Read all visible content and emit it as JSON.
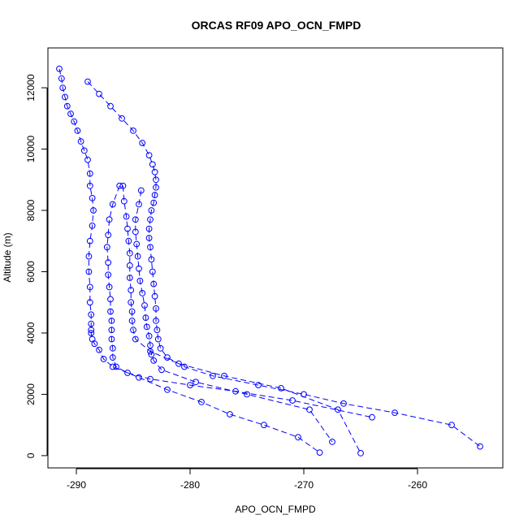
{
  "chart_data": {
    "type": "scatter",
    "title": "ORCAS RF09 APO_OCN_FMPD",
    "xlabel": "APO_OCN_FMPD",
    "ylabel": "Altitude (m)",
    "xlim": [
      -292.5,
      -252.5
    ],
    "ylim": [
      -400,
      13300
    ],
    "xticks": [
      -290,
      -280,
      -270,
      -260
    ],
    "yticks": [
      0,
      2000,
      4000,
      6000,
      8000,
      10000,
      12000
    ],
    "color": "#0000ff",
    "marker": "open-circle",
    "line_style": "dashed",
    "series": [
      {
        "x": [
          -291.5,
          -291.3,
          -291.2,
          -291.0,
          -290.8,
          -290.5,
          -290.2,
          -289.9,
          -289.6,
          -289.3,
          -289.0,
          -288.8,
          -288.8,
          -288.6,
          -288.5,
          -288.6,
          -288.8,
          -288.9,
          -288.9,
          -288.8,
          -288.8,
          -288.7,
          -288.7,
          -288.7,
          -288.7,
          -288.6,
          -288.4,
          -288.0,
          -287.6,
          -286.8,
          -284.5,
          -282.0,
          -279.0,
          -276.5,
          -273.5,
          -270.5,
          -268.6
        ],
        "y": [
          12620,
          12300,
          12000,
          11700,
          11400,
          11150,
          10900,
          10600,
          10250,
          9950,
          9650,
          9200,
          8800,
          8400,
          8000,
          7500,
          7000,
          6500,
          6000,
          5500,
          5000,
          4600,
          4300,
          4100,
          4000,
          3800,
          3650,
          3450,
          3150,
          2900,
          2550,
          2150,
          1750,
          1350,
          1000,
          600,
          100
        ]
      },
      {
        "x": [
          -289.0,
          -288.0,
          -287.0,
          -286.0,
          -285.0,
          -284.2,
          -283.6,
          -283.3,
          -283.1,
          -283.0,
          -283.0,
          -283.1,
          -283.2,
          -283.4,
          -283.5,
          -283.6,
          -283.6,
          -283.5,
          -283.4,
          -283.3,
          -283.2,
          -283.1,
          -283.0,
          -283.0,
          -282.9,
          -282.8,
          -282.6,
          -282.0,
          -280.5,
          -278.0,
          -274.0,
          -270.0,
          -266.5,
          -262.0,
          -257.0,
          -254.5
        ],
        "y": [
          12200,
          11800,
          11400,
          11000,
          10600,
          10200,
          9800,
          9500,
          9250,
          9000,
          8750,
          8500,
          8250,
          8000,
          7700,
          7400,
          7100,
          6800,
          6400,
          6000,
          5600,
          5200,
          4800,
          4400,
          4100,
          3800,
          3500,
          3200,
          2900,
          2600,
          2300,
          2000,
          1700,
          1400,
          1000,
          300
        ]
      },
      {
        "x": [
          -286.2,
          -286.8,
          -287.1,
          -287.2,
          -287.3,
          -287.2,
          -287.2,
          -287.1,
          -287.0,
          -287.0,
          -286.9,
          -286.9,
          -286.9,
          -286.8,
          -286.8,
          -286.5,
          -285.5,
          -283.5,
          -280.0,
          -276.0,
          -271.0,
          -264.0
        ],
        "y": [
          8800,
          8200,
          7700,
          7200,
          6800,
          6300,
          5900,
          5500,
          5100,
          4700,
          4400,
          4100,
          3800,
          3500,
          3200,
          2900,
          2700,
          2500,
          2300,
          2100,
          1800,
          1250
        ]
      },
      {
        "x": [
          -285.9,
          -285.8,
          -285.6,
          -285.5,
          -285.4,
          -285.3,
          -285.3,
          -285.3,
          -285.2,
          -285.2,
          -285.1,
          -285.1,
          -285.0,
          -284.8,
          -283.5,
          -281.0,
          -277.0,
          -272.0,
          -267.0,
          -265.0
        ],
        "y": [
          8800,
          8300,
          7800,
          7400,
          7000,
          6600,
          6200,
          5800,
          5400,
          5000,
          4700,
          4400,
          4100,
          3800,
          3400,
          3000,
          2600,
          2200,
          1500,
          80
        ]
      },
      {
        "x": [
          -284.3,
          -284.5,
          -284.8,
          -284.8,
          -284.7,
          -284.6,
          -284.5,
          -284.4,
          -284.2,
          -284.0,
          -283.9,
          -283.8,
          -283.6,
          -283.5,
          -283.4,
          -283.2,
          -282.5,
          -279.5,
          -275.0,
          -269.5,
          -267.5
        ],
        "y": [
          8650,
          8200,
          7700,
          7300,
          6900,
          6500,
          6100,
          5700,
          5300,
          4900,
          4500,
          4200,
          3900,
          3600,
          3300,
          3100,
          2800,
          2400,
          2000,
          1500,
          450
        ]
      }
    ]
  }
}
